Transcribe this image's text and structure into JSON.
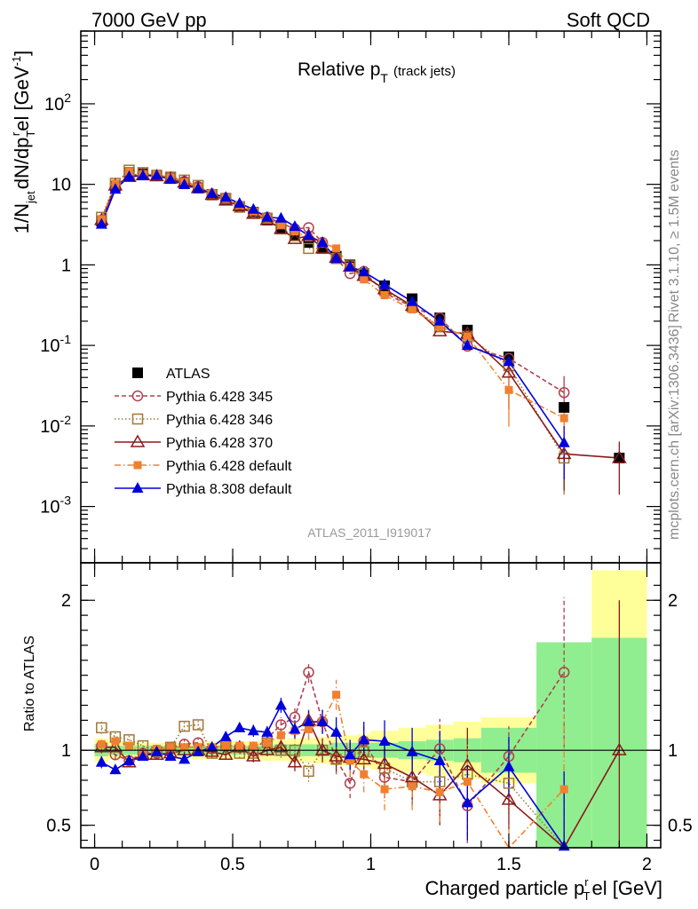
{
  "header": {
    "left": "7000 GeV pp",
    "right": "Soft QCD"
  },
  "side": {
    "rivet": "Rivet 3.1.10, ≥ 1.5M events",
    "source": "mcplots.cern.ch [arXiv:1306.3436]"
  },
  "labels": {
    "title_main": "Relative p",
    "title_sub": "T",
    "title_tail": "(track jets)",
    "ylabel_main": "1/N",
    "ylabel_rest": "dN/dp",
    "ylabel_sup": "r",
    "ylabel_tail": "el [GeV",
    "ylabel_exp": "-1",
    "ylabel_close": "]",
    "ylabel_jet": "jet",
    "ylabel_T": "T",
    "analysis_id": "ATLAS_2011_I919017",
    "ratio_ylabel": "Ratio to ATLAS",
    "xlabel_main": "Charged particle p",
    "xlabel_sup": "r",
    "xlabel_sub": "T",
    "xlabel_tail": "el [GeV]"
  },
  "chart_data": {
    "type": "scatter",
    "x": [
      0.025,
      0.075,
      0.125,
      0.175,
      0.225,
      0.275,
      0.325,
      0.375,
      0.425,
      0.475,
      0.525,
      0.575,
      0.625,
      0.675,
      0.725,
      0.775,
      0.825,
      0.875,
      0.925,
      0.975,
      1.05,
      1.15,
      1.25,
      1.35,
      1.5,
      1.7,
      1.9
    ],
    "xlim": [
      -0.05,
      2.05
    ],
    "main_ylim": [
      0.0002,
      800
    ],
    "main_yscale": "log",
    "main_yticks": [
      "10^-3",
      "10^-2",
      "10^-1",
      "1",
      "10",
      "10^2"
    ],
    "ratio_ylim": [
      0.35,
      2.25
    ],
    "ratio_yticks": [
      "0.5",
      "1",
      "2"
    ],
    "xticks": [
      "0",
      "0.5",
      "1",
      "1.5",
      "2"
    ],
    "legend_position": "bottom-left",
    "grid": false,
    "band_edges": [
      0.0,
      0.05,
      0.1,
      0.15,
      0.2,
      0.25,
      0.3,
      0.35,
      0.4,
      0.45,
      0.5,
      0.55,
      0.6,
      0.65,
      0.7,
      0.75,
      0.8,
      0.85,
      0.9,
      0.95,
      1.0,
      1.1,
      1.2,
      1.3,
      1.4,
      1.6,
      1.8,
      2.0
    ],
    "band_stat": [
      0.04,
      0.03,
      0.03,
      0.03,
      0.03,
      0.03,
      0.03,
      0.03,
      0.03,
      0.03,
      0.03,
      0.03,
      0.03,
      0.04,
      0.04,
      0.04,
      0.04,
      0.05,
      0.05,
      0.05,
      0.05,
      0.06,
      0.07,
      0.08,
      0.15,
      0.72,
      0.75
    ],
    "band_total": [
      0.08,
      0.06,
      0.06,
      0.05,
      0.05,
      0.05,
      0.05,
      0.06,
      0.06,
      0.06,
      0.06,
      0.06,
      0.07,
      0.07,
      0.08,
      0.08,
      0.09,
      0.1,
      0.1,
      0.11,
      0.13,
      0.15,
      0.17,
      0.19,
      0.22,
      0.65,
      1.2
    ],
    "series": [
      {
        "name": "ATLAS",
        "color": "#000000",
        "marker": "square-filled",
        "line": "none",
        "values": [
          3.5,
          9.5,
          14.0,
          13.5,
          13.0,
          12.0,
          10.5,
          9.0,
          7.5,
          6.5,
          5.3,
          4.5,
          3.6,
          2.8,
          2.3,
          1.9,
          1.6,
          1.28,
          1.0,
          0.78,
          0.55,
          0.38,
          0.22,
          0.155,
          0.072,
          0.017,
          0.004
        ],
        "ratio": []
      },
      {
        "name": "Pythia 6.428 345",
        "color": "#b04050",
        "marker": "circle-open",
        "line": "dashed",
        "values": [
          3.6,
          9.2,
          13.0,
          13.3,
          12.8,
          12.2,
          10.9,
          9.4,
          7.6,
          6.8,
          5.4,
          4.5,
          3.9,
          3.3,
          2.8,
          2.9,
          1.9,
          1.2,
          0.78,
          0.83,
          0.45,
          0.3,
          0.22,
          0.098,
          0.069,
          0.026,
          0.0
        ],
        "ratio": [
          1.03,
          0.97,
          0.93,
          0.98,
          0.98,
          1.02,
          1.04,
          1.05,
          1.01,
          1.04,
          1.02,
          1.0,
          1.08,
          1.17,
          1.22,
          1.52,
          1.19,
          0.94,
          0.78,
          1.06,
          0.82,
          0.79,
          1.01,
          0.63,
          0.96,
          1.52,
          null
        ],
        "ratio_err": [
          0.04,
          0.03,
          0.03,
          0.03,
          0.03,
          0.03,
          0.03,
          0.03,
          0.03,
          0.03,
          0.03,
          0.04,
          0.04,
          0.05,
          0.06,
          0.07,
          0.08,
          0.1,
          0.1,
          0.12,
          0.14,
          0.16,
          0.2,
          0.25,
          0.2,
          0.5,
          0
        ]
      },
      {
        "name": "Pythia 6.428 346",
        "color": "#a07838",
        "marker": "square-open",
        "line": "dotted",
        "values": [
          3.9,
          10.3,
          15.0,
          14.0,
          12.9,
          12.3,
          11.3,
          9.7,
          7.4,
          6.7,
          5.2,
          4.4,
          3.8,
          2.8,
          2.3,
          1.6,
          1.6,
          1.2,
          0.97,
          0.77,
          0.48,
          0.3,
          0.17,
          0.13,
          0.056,
          0.004,
          0.0
        ],
        "ratio": [
          1.15,
          1.09,
          1.07,
          1.03,
          0.99,
          1.02,
          1.16,
          1.17,
          0.98,
          1.03,
          0.98,
          0.98,
          1.05,
          1.0,
          1.0,
          0.86,
          1.0,
          0.94,
          0.97,
          0.99,
          0.88,
          0.79,
          0.79,
          0.84,
          0.78,
          0.24,
          null
        ],
        "ratio_err": [
          0.04,
          0.03,
          0.03,
          0.03,
          0.03,
          0.03,
          0.03,
          0.03,
          0.03,
          0.03,
          0.03,
          0.04,
          0.04,
          0.05,
          0.06,
          0.07,
          0.08,
          0.1,
          0.1,
          0.12,
          0.14,
          0.16,
          0.2,
          0.25,
          0.2,
          0.5,
          0
        ]
      },
      {
        "name": "Pythia 6.428 370",
        "color": "#8b1a1a",
        "marker": "triangle-open",
        "line": "solid",
        "values": [
          3.6,
          9.7,
          12.4,
          13.0,
          12.6,
          11.8,
          10.5,
          9.0,
          7.4,
          6.3,
          5.4,
          4.3,
          3.6,
          2.8,
          2.1,
          2.3,
          1.6,
          1.23,
          0.95,
          0.73,
          0.5,
          0.31,
          0.15,
          0.14,
          0.046,
          0.0045,
          0.004
        ],
        "ratio": [
          1.02,
          1.02,
          0.92,
          0.97,
          0.97,
          0.98,
          1.0,
          1.0,
          0.99,
          0.97,
          1.02,
          0.96,
          1.0,
          1.02,
          0.92,
          1.2,
          1.0,
          0.96,
          0.95,
          0.94,
          0.91,
          0.82,
          0.7,
          0.9,
          0.67,
          0.26,
          1.0
        ],
        "ratio_err": [
          0.04,
          0.03,
          0.03,
          0.03,
          0.03,
          0.03,
          0.03,
          0.03,
          0.03,
          0.03,
          0.03,
          0.04,
          0.04,
          0.05,
          0.06,
          0.07,
          0.08,
          0.1,
          0.1,
          0.12,
          0.14,
          0.16,
          0.2,
          0.25,
          0.2,
          0.5,
          1.0
        ]
      },
      {
        "name": "Pythia 6.428 default",
        "color": "#f08030",
        "marker": "square-filled-small",
        "line": "dashdot",
        "values": [
          3.7,
          10.2,
          14.4,
          13.2,
          13.2,
          12.2,
          10.7,
          9.2,
          7.7,
          6.7,
          5.5,
          4.6,
          3.8,
          3.1,
          2.6,
          2.2,
          1.9,
          1.6,
          0.95,
          0.66,
          0.42,
          0.28,
          0.17,
          0.13,
          0.028,
          0.0125,
          0.0
        ],
        "ratio": [
          1.04,
          1.06,
          1.03,
          0.98,
          1.01,
          1.02,
          1.02,
          1.02,
          1.02,
          1.03,
          1.03,
          1.03,
          1.05,
          1.1,
          1.13,
          1.14,
          1.19,
          1.37,
          0.93,
          0.84,
          0.74,
          0.76,
          0.72,
          0.79,
          0.3,
          0.74,
          null
        ],
        "ratio_err": [
          0.04,
          0.03,
          0.03,
          0.03,
          0.03,
          0.03,
          0.03,
          0.03,
          0.03,
          0.03,
          0.03,
          0.04,
          0.04,
          0.05,
          0.06,
          0.07,
          0.08,
          0.1,
          0.1,
          0.12,
          0.14,
          0.16,
          0.2,
          0.25,
          0.2,
          0.5,
          0
        ]
      },
      {
        "name": "Pythia 8.308 default",
        "color": "#0000dd",
        "marker": "triangle-filled",
        "line": "solid",
        "values": [
          3.2,
          8.7,
          12.5,
          12.8,
          12.9,
          11.5,
          9.9,
          8.9,
          7.7,
          6.9,
          5.8,
          4.9,
          3.9,
          3.8,
          3.0,
          2.3,
          1.9,
          1.2,
          0.95,
          0.82,
          0.57,
          0.35,
          0.2,
          0.1,
          0.063,
          0.0062,
          0.0
        ],
        "ratio": [
          0.92,
          0.87,
          0.93,
          0.96,
          0.99,
          0.96,
          0.94,
          0.99,
          1.02,
          1.09,
          1.15,
          1.13,
          1.12,
          1.3,
          1.14,
          1.19,
          1.19,
          1.12,
          0.97,
          1.07,
          1.06,
          0.99,
          0.93,
          0.65,
          0.89,
          0.36,
          null
        ],
        "ratio_err": [
          0.04,
          0.03,
          0.03,
          0.03,
          0.03,
          0.03,
          0.03,
          0.03,
          0.03,
          0.03,
          0.03,
          0.04,
          0.04,
          0.05,
          0.06,
          0.07,
          0.08,
          0.1,
          0.1,
          0.12,
          0.14,
          0.16,
          0.2,
          0.25,
          0.2,
          0.5,
          0
        ]
      }
    ],
    "band_colors": {
      "stat": "#90ee90",
      "total": "#ffff99"
    }
  }
}
